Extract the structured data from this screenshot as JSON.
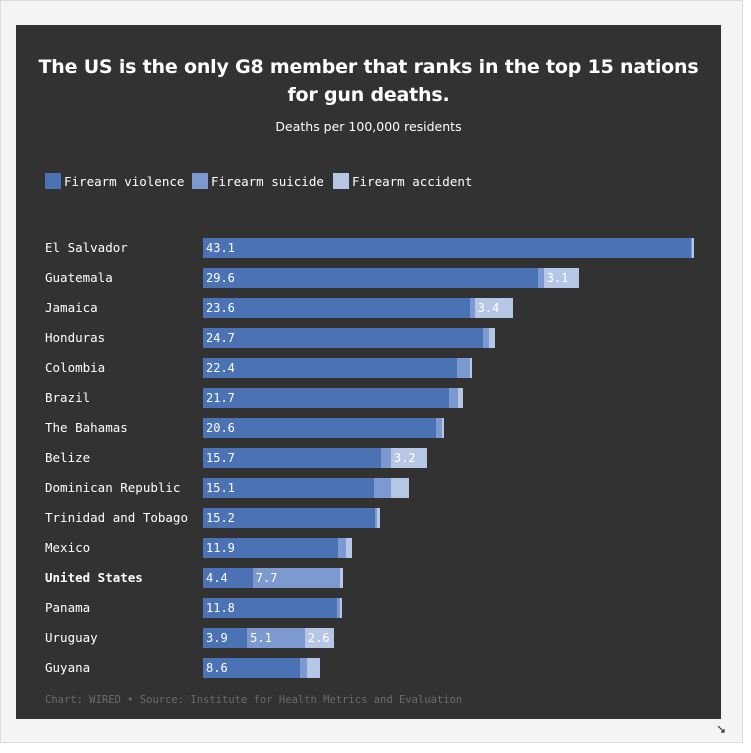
{
  "colors": {
    "panel": "#323232",
    "violence": "#4a72b4",
    "suicide": "#7c9ad0",
    "accident": "#b6c7e6"
  },
  "chart_data": {
    "type": "bar",
    "orientation": "horizontal",
    "stacked": true,
    "title": "The US is the only G8 member that ranks in the top 15 nations for gun deaths.",
    "subtitle": "Deaths per 100,000 residents",
    "categories": [
      "El Salvador",
      "Guatemala",
      "Jamaica",
      "Honduras",
      "Colombia",
      "Brazil",
      "The Bahamas",
      "Belize",
      "Dominican Republic",
      "Trinidad and Tobago",
      "Mexico",
      "United States",
      "Panama",
      "Uruguay",
      "Guyana"
    ],
    "highlight": "United States",
    "series": [
      {
        "name": "Firearm violence",
        "color": "#4a72b4",
        "values": [
          43.1,
          29.6,
          23.6,
          24.7,
          22.4,
          21.7,
          20.6,
          15.7,
          15.1,
          15.2,
          11.9,
          4.4,
          11.8,
          3.9,
          8.6
        ]
      },
      {
        "name": "Firearm suicide",
        "color": "#7c9ad0",
        "values": [
          0.1,
          0.5,
          0.4,
          0.6,
          1.2,
          0.8,
          0.5,
          0.9,
          1.5,
          0.2,
          0.7,
          7.7,
          0.3,
          5.1,
          0.6
        ]
      },
      {
        "name": "Firearm accident",
        "color": "#b6c7e6",
        "values": [
          0.1,
          3.1,
          3.4,
          0.5,
          0.2,
          0.5,
          0.2,
          3.2,
          1.6,
          0.2,
          0.6,
          0.3,
          0.2,
          2.6,
          1.1
        ]
      }
    ],
    "data_labels": [
      [
        "43.1",
        "",
        ""
      ],
      [
        "29.6",
        "",
        "3.1"
      ],
      [
        "23.6",
        "",
        "3.4"
      ],
      [
        "24.7",
        "",
        ""
      ],
      [
        "22.4",
        "",
        ""
      ],
      [
        "21.7",
        "",
        ""
      ],
      [
        "20.6",
        "",
        ""
      ],
      [
        "15.7",
        "",
        "3.2"
      ],
      [
        "15.1",
        "",
        ""
      ],
      [
        "15.2",
        "",
        ""
      ],
      [
        "11.9",
        "",
        ""
      ],
      [
        "4.4",
        "7.7",
        ""
      ],
      [
        "11.8",
        "",
        ""
      ],
      [
        "3.9",
        "5.1",
        "2.6"
      ],
      [
        "8.6",
        "",
        ""
      ]
    ],
    "legend_position": "top-left",
    "grid": false,
    "xlim": [
      0,
      43.3
    ],
    "footer": "Chart: WIRED • Source: Institute for Health Metrics and Evaluation"
  }
}
